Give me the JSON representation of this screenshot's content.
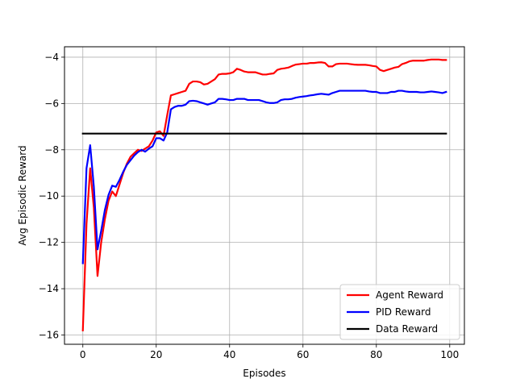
{
  "chart_data": {
    "type": "line",
    "xlabel": "Episodes",
    "ylabel": "Avg Episodic Reward",
    "xlim": [
      -5,
      104
    ],
    "ylim": [
      -16.4,
      -3.55
    ],
    "xticks": [
      0,
      20,
      40,
      60,
      80,
      100
    ],
    "yticks": [
      -16,
      -14,
      -12,
      -10,
      -8,
      -6,
      -4
    ],
    "grid": true,
    "legend_position": "lower-right",
    "x": [
      0,
      1,
      2,
      3,
      4,
      5,
      6,
      7,
      8,
      9,
      10,
      11,
      12,
      13,
      14,
      15,
      16,
      17,
      18,
      19,
      20,
      21,
      22,
      23,
      24,
      25,
      26,
      27,
      28,
      29,
      30,
      31,
      32,
      33,
      34,
      35,
      36,
      37,
      38,
      39,
      40,
      41,
      42,
      43,
      44,
      45,
      46,
      47,
      48,
      49,
      50,
      51,
      52,
      53,
      54,
      55,
      56,
      57,
      58,
      59,
      60,
      61,
      62,
      63,
      64,
      65,
      66,
      67,
      68,
      69,
      70,
      71,
      72,
      73,
      74,
      75,
      76,
      77,
      78,
      79,
      80,
      81,
      82,
      83,
      84,
      85,
      86,
      87,
      88,
      89,
      90,
      91,
      92,
      93,
      94,
      95,
      96,
      97,
      98,
      99
    ],
    "series": [
      {
        "name": "Agent Reward",
        "color": "#ff0000",
        "values": [
          -15.8,
          -11.2,
          -8.8,
          -10.5,
          -13.45,
          -12.0,
          -11.0,
          -10.2,
          -9.8,
          -10.0,
          -9.5,
          -9.0,
          -8.6,
          -8.3,
          -8.15,
          -8.0,
          -8.05,
          -7.95,
          -7.85,
          -7.6,
          -7.25,
          -7.2,
          -7.4,
          -6.5,
          -5.65,
          -5.6,
          -5.55,
          -5.5,
          -5.45,
          -5.15,
          -5.05,
          -5.05,
          -5.08,
          -5.18,
          -5.15,
          -5.05,
          -4.95,
          -4.75,
          -4.72,
          -4.72,
          -4.7,
          -4.65,
          -4.5,
          -4.55,
          -4.62,
          -4.65,
          -4.65,
          -4.65,
          -4.7,
          -4.75,
          -4.75,
          -4.72,
          -4.7,
          -4.55,
          -4.5,
          -4.48,
          -4.45,
          -4.38,
          -4.32,
          -4.3,
          -4.28,
          -4.28,
          -4.25,
          -4.25,
          -4.23,
          -4.22,
          -4.25,
          -4.4,
          -4.4,
          -4.3,
          -4.28,
          -4.28,
          -4.28,
          -4.3,
          -4.32,
          -4.33,
          -4.33,
          -4.33,
          -4.35,
          -4.38,
          -4.4,
          -4.55,
          -4.6,
          -4.55,
          -4.5,
          -4.45,
          -4.42,
          -4.3,
          -4.25,
          -4.18,
          -4.15,
          -4.15,
          -4.15,
          -4.15,
          -4.12,
          -4.1,
          -4.1,
          -4.1,
          -4.12,
          -4.12
        ]
      },
      {
        "name": "PID Reward",
        "color": "#0000ff",
        "values": [
          -12.9,
          -8.8,
          -7.8,
          -9.6,
          -12.3,
          -11.5,
          -10.6,
          -9.95,
          -9.55,
          -9.6,
          -9.3,
          -8.95,
          -8.65,
          -8.45,
          -8.25,
          -8.1,
          -8.0,
          -8.08,
          -7.95,
          -7.85,
          -7.5,
          -7.5,
          -7.6,
          -7.25,
          -6.25,
          -6.15,
          -6.1,
          -6.1,
          -6.05,
          -5.9,
          -5.88,
          -5.9,
          -5.95,
          -6.0,
          -6.05,
          -6.0,
          -5.95,
          -5.8,
          -5.8,
          -5.82,
          -5.85,
          -5.85,
          -5.8,
          -5.8,
          -5.8,
          -5.85,
          -5.85,
          -5.85,
          -5.85,
          -5.9,
          -5.95,
          -5.98,
          -5.98,
          -5.95,
          -5.85,
          -5.82,
          -5.82,
          -5.8,
          -5.75,
          -5.72,
          -5.7,
          -5.68,
          -5.65,
          -5.63,
          -5.6,
          -5.58,
          -5.6,
          -5.62,
          -5.55,
          -5.5,
          -5.45,
          -5.45,
          -5.45,
          -5.45,
          -5.45,
          -5.45,
          -5.45,
          -5.45,
          -5.48,
          -5.5,
          -5.5,
          -5.55,
          -5.55,
          -5.55,
          -5.5,
          -5.5,
          -5.45,
          -5.45,
          -5.48,
          -5.5,
          -5.5,
          -5.5,
          -5.52,
          -5.52,
          -5.5,
          -5.48,
          -5.5,
          -5.52,
          -5.55,
          -5.5
        ]
      },
      {
        "name": "Data Reward",
        "color": "#000000",
        "values": [
          -7.3,
          -7.3,
          -7.3,
          -7.3,
          -7.3,
          -7.3,
          -7.3,
          -7.3,
          -7.3,
          -7.3,
          -7.3,
          -7.3,
          -7.3,
          -7.3,
          -7.3,
          -7.3,
          -7.3,
          -7.3,
          -7.3,
          -7.3,
          -7.3,
          -7.3,
          -7.3,
          -7.3,
          -7.3,
          -7.3,
          -7.3,
          -7.3,
          -7.3,
          -7.3,
          -7.3,
          -7.3,
          -7.3,
          -7.3,
          -7.3,
          -7.3,
          -7.3,
          -7.3,
          -7.3,
          -7.3,
          -7.3,
          -7.3,
          -7.3,
          -7.3,
          -7.3,
          -7.3,
          -7.3,
          -7.3,
          -7.3,
          -7.3,
          -7.3,
          -7.3,
          -7.3,
          -7.3,
          -7.3,
          -7.3,
          -7.3,
          -7.3,
          -7.3,
          -7.3,
          -7.3,
          -7.3,
          -7.3,
          -7.3,
          -7.3,
          -7.3,
          -7.3,
          -7.3,
          -7.3,
          -7.3,
          -7.3,
          -7.3,
          -7.3,
          -7.3,
          -7.3,
          -7.3,
          -7.3,
          -7.3,
          -7.3,
          -7.3,
          -7.3,
          -7.3,
          -7.3,
          -7.3,
          -7.3,
          -7.3,
          -7.3,
          -7.3,
          -7.3,
          -7.3,
          -7.3,
          -7.3,
          -7.3,
          -7.3,
          -7.3,
          -7.3,
          -7.3,
          -7.3,
          -7.3,
          -7.3
        ]
      }
    ]
  }
}
